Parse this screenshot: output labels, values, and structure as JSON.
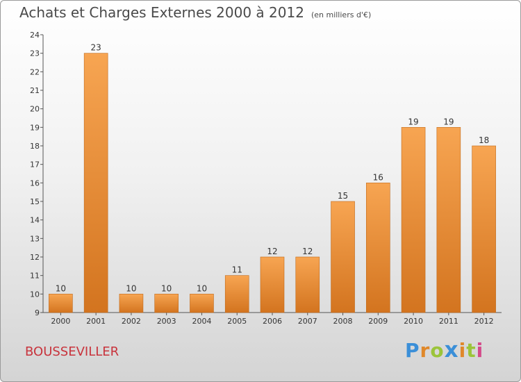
{
  "title": "Achats et Charges Externes 2000 à 2012",
  "subtitle": "(en milliers d'€)",
  "place_name": "BOUSSEVILLER",
  "logo": {
    "text": "Proxiti",
    "letters": [
      {
        "ch": "P",
        "color": "#3b8fd8"
      },
      {
        "ch": "r",
        "color": "#e0882a"
      },
      {
        "ch": "o",
        "color": "#9bc43a"
      },
      {
        "ch": "x",
        "color": "#3b8fd8"
      },
      {
        "ch": "i",
        "color": "#e0882a"
      },
      {
        "ch": "t",
        "color": "#9bc43a"
      },
      {
        "ch": "i",
        "color": "#d44a8a"
      }
    ]
  },
  "chart_data": {
    "type": "bar",
    "categories": [
      "2000",
      "2001",
      "2002",
      "2003",
      "2004",
      "2005",
      "2006",
      "2007",
      "2008",
      "2009",
      "2010",
      "2011",
      "2012"
    ],
    "values": [
      10,
      23,
      10,
      10,
      10,
      11,
      12,
      12,
      15,
      16,
      19,
      19,
      18
    ],
    "ylim": [
      9,
      24
    ],
    "yticks": [
      9,
      10,
      11,
      12,
      13,
      14,
      15,
      16,
      17,
      18,
      19,
      20,
      21,
      22,
      23,
      24
    ],
    "grid": false,
    "colors": {
      "bar_light": "#f7a552",
      "bar_dark": "#d3741f",
      "axis": "#555555"
    }
  }
}
